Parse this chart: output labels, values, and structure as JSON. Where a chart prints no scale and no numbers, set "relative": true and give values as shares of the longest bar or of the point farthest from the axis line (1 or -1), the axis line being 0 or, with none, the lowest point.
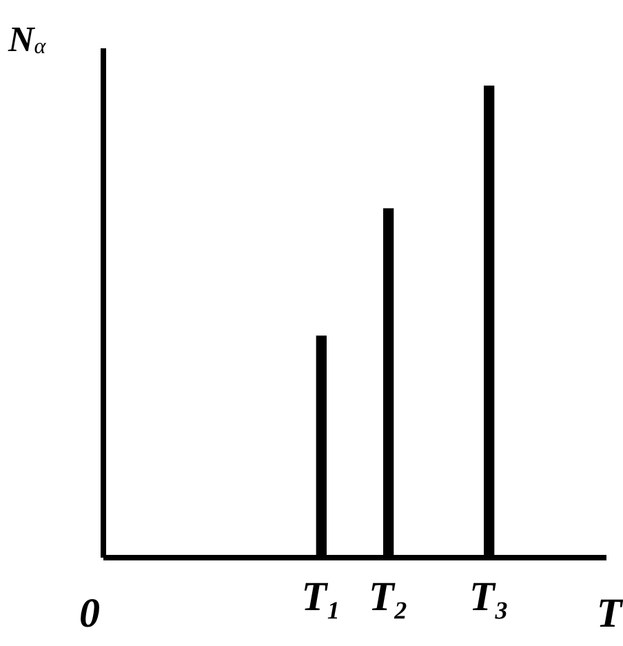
{
  "chart_data": {
    "type": "bar",
    "relative": true,
    "ylabel": "N$_{α}$",
    "xlabel": "T",
    "annotations": [
      "0"
    ],
    "color": "#000000",
    "grid": false,
    "legend": false,
    "categories": [
      null,
      null,
      null,
      null,
      null,
      null,
      "T₁",
      null,
      "T₂",
      null,
      null,
      "T₃",
      null,
      null,
      null
    ],
    "values": [
      null,
      null,
      null,
      null,
      null,
      null,
      0.47,
      null,
      0.74,
      null,
      null,
      1,
      null,
      null,
      null
    ]
  }
}
